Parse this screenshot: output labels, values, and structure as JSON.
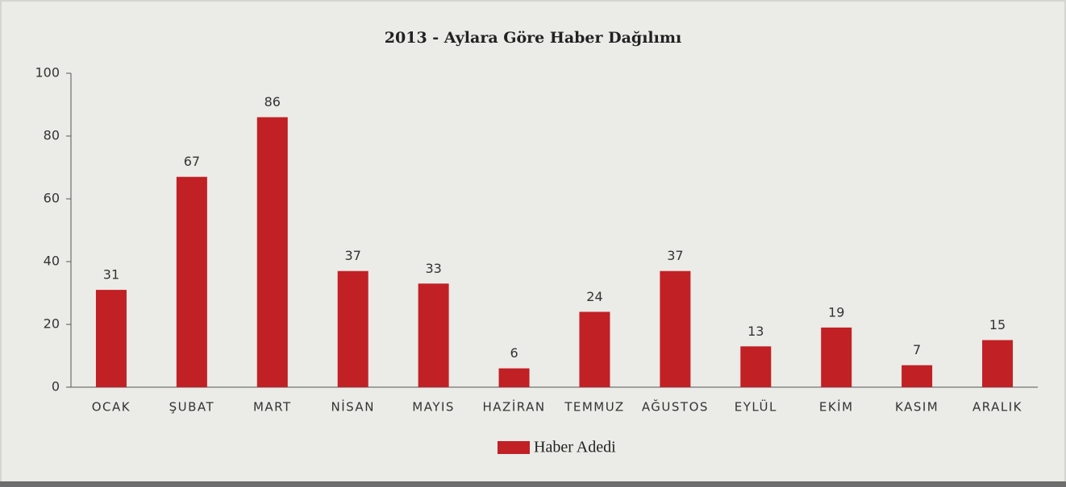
{
  "chart_data": {
    "type": "bar",
    "title": "2013 - Aylara Göre Haber Dağılımı",
    "categories": [
      "OCAK",
      "ŞUBAT",
      "MART",
      "NİSAN",
      "MAYIS",
      "HAZİRAN",
      "TEMMUZ",
      "AĞUSTOS",
      "EYLÜL",
      "EKİM",
      "KASIM",
      "ARALIK"
    ],
    "series": [
      {
        "name": "Haber Adedi",
        "color": "#c12025",
        "values": [
          31,
          67,
          86,
          37,
          33,
          6,
          24,
          37,
          13,
          19,
          7,
          15
        ]
      }
    ],
    "ylim": [
      0,
      100
    ],
    "yticks": [
      0,
      20,
      40,
      60,
      80,
      100
    ],
    "grid": false,
    "legend": "bottom"
  }
}
